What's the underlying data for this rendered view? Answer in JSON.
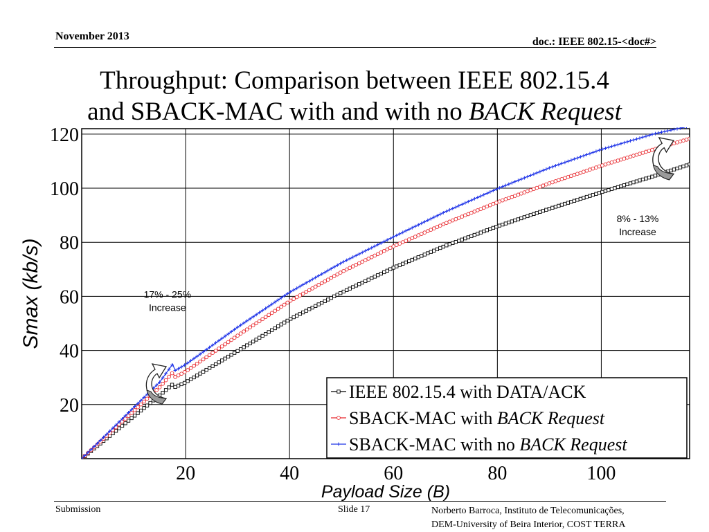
{
  "header": {
    "date": "November 2013",
    "doc": "doc.: IEEE 802.15-<doc#>"
  },
  "slide_title": {
    "line1": "Throughput: Comparison between IEEE 802.15.4",
    "line2_prefix": "and SBACK-MAC with and with no ",
    "line2_italic": "BACK Request"
  },
  "footer": {
    "left": "Submission",
    "center": "Slide 17",
    "right_line1": "Norberto Barroca, Instituto de Telecomunicações,",
    "right_line2": "DEM-University of Beira Interior, COST TERRA"
  },
  "chart_data": {
    "type": "line",
    "title": "",
    "xlabel": "Payload Size (B)",
    "ylabel": "Smax (kb/s)",
    "xlim": [
      0,
      117
    ],
    "ylim": [
      0,
      122
    ],
    "xticks": [
      20,
      40,
      60,
      80,
      100
    ],
    "yticks": [
      20,
      40,
      60,
      80,
      100,
      120
    ],
    "grid": true,
    "legend_position": "bottom-right",
    "series": [
      {
        "name": "IEEE 802.15.4 with DATA/ACK",
        "name_plain": "IEEE 802.15.4 with DATA/ACK",
        "name_italic": "",
        "color": "#000000",
        "marker": "square",
        "x": [
          0,
          5,
          10,
          15,
          17.5,
          18,
          20,
          30,
          40,
          50,
          60,
          70,
          80,
          90,
          100,
          110,
          117
        ],
        "y": [
          0,
          7.8,
          15.6,
          23.4,
          27.5,
          26.5,
          28.2,
          39.8,
          51.5,
          61.4,
          70.6,
          78.7,
          85.9,
          92.4,
          98.5,
          104.4,
          108.8
        ]
      },
      {
        "name": "SBACK-MAC with BACK Request",
        "name_plain": "SBACK-MAC with ",
        "name_italic": "BACK Request",
        "color": "#e8282d",
        "marker": "circle",
        "x": [
          0,
          5,
          10,
          15,
          17.5,
          18,
          20,
          30,
          40,
          50,
          60,
          70,
          80,
          90,
          100,
          110,
          117
        ],
        "y": [
          0,
          8.8,
          17.6,
          26.4,
          31.8,
          30.2,
          32.2,
          45.5,
          58.2,
          69.0,
          78.5,
          87.0,
          94.8,
          101.8,
          108.3,
          114.3,
          118.3
        ]
      },
      {
        "name": "SBACK-MAC with no BACK Request",
        "name_plain": "SBACK-MAC with no ",
        "name_italic": "BACK Request",
        "color": "#1f34e8",
        "marker": "plus",
        "x": [
          0,
          5,
          10,
          15,
          17.5,
          18,
          20,
          30,
          40,
          50,
          60,
          70,
          80,
          90,
          100,
          110,
          117
        ],
        "y": [
          0,
          9.4,
          18.9,
          28.3,
          34.9,
          32.6,
          34.8,
          48.6,
          61.5,
          72.4,
          82.0,
          91.3,
          99.8,
          107.5,
          114.3,
          120.0,
          123.0
        ]
      }
    ],
    "annotations": [
      {
        "id": "low",
        "line1": "17% - 25%",
        "line2": "Increase",
        "at_x": 16.5,
        "at_y": 59.5
      },
      {
        "id": "high",
        "line1": "8% - 13%",
        "line2": "Increase",
        "at_x": 107,
        "at_y": 87.5
      }
    ]
  }
}
